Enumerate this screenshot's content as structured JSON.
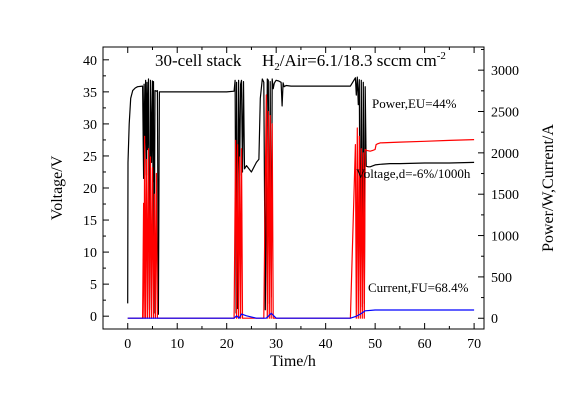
{
  "chart_data": {
    "type": "line",
    "title": "30-cell stack",
    "subtitle_parts": {
      "prefix": "H",
      "sub": "2",
      "middle": "/Air=6.1/18.3 sccm cm",
      "sup": "-2"
    },
    "xlabel": "Time/h",
    "ylabel_left": "Voltage/V",
    "ylabel_right": "Power/W,Current/A",
    "xlim": [
      -5,
      72
    ],
    "ylim_left": [
      -2,
      42
    ],
    "ylim_right": [
      -130,
      3280
    ],
    "x_ticks": [
      0,
      10,
      20,
      30,
      40,
      50,
      60,
      70
    ],
    "x_tick_labels": [
      "0",
      "10",
      "20",
      "30",
      "40",
      "50",
      "60",
      "70"
    ],
    "y_left_ticks": [
      0,
      5,
      10,
      15,
      20,
      25,
      30,
      35,
      40
    ],
    "y_left_tick_labels": [
      "0",
      "5",
      "10",
      "15",
      "20",
      "25",
      "30",
      "35",
      "40"
    ],
    "y_right_ticks": [
      0,
      500,
      1000,
      1500,
      2000,
      2500,
      3000
    ],
    "y_right_tick_labels": [
      "0",
      "500",
      "1000",
      "1500",
      "2000",
      "2500",
      "3000"
    ],
    "annotations": [
      "Power,EU=44%",
      "Voltage,d=-6%/1000h",
      "Current,FU=68.4%"
    ],
    "series": [
      {
        "axis": "left",
        "color": "#000000",
        "x": [
          0,
          0.05,
          0.3,
          0.6,
          1.0,
          1.5,
          2.0,
          3.0,
          3.2,
          3.3,
          3.4,
          3.6,
          3.8,
          3.9,
          4.0,
          4.2,
          4.4,
          4.6,
          4.8,
          5.0,
          5.1,
          5.2,
          5.3,
          5.5,
          5.8,
          6.0,
          6.2,
          6.4,
          8,
          12,
          16,
          20,
          21.5,
          21.7,
          21.9,
          22.0,
          22.2,
          22.4,
          22.6,
          22.8,
          23.0,
          23.2,
          23.4,
          23.6,
          24,
          25,
          26,
          26.5,
          26.8,
          27.2,
          27.5,
          27.8,
          28.2,
          28.4,
          28.6,
          28.8,
          29.0,
          29.2,
          29.4,
          29.6,
          29.8,
          30,
          30.5,
          31.0,
          31.2,
          31.4,
          31.6,
          32,
          33,
          35,
          37,
          39,
          41,
          43,
          45,
          46.0,
          46.2,
          46.4,
          46.6,
          46.8,
          47.0,
          47.2,
          47.4,
          47.6,
          47.8,
          48.0,
          48.2,
          48.6,
          49.0,
          50.0,
          51,
          53,
          55,
          60,
          65,
          70
        ],
        "y": [
          2,
          24,
          30,
          34,
          35.2,
          35.6,
          35.8,
          35.9,
          21.5,
          36.2,
          21,
          36.8,
          22,
          36.5,
          26,
          37,
          1,
          36.8,
          24,
          36.7,
          21,
          36.6,
          0.5,
          35.2,
          35.1,
          35.2,
          0.3,
          35.0,
          35.0,
          35.0,
          35.0,
          35.0,
          35.1,
          36.8,
          0.5,
          36.5,
          1.2,
          36.8,
          22,
          36.2,
          36.8,
          22.5,
          36.6,
          23,
          23.5,
          22.5,
          24,
          24.5,
          34,
          37,
          36.5,
          1,
          37,
          36.8,
          2,
          36.6,
          3,
          37,
          35.5,
          36.3,
          36.6,
          36.8,
          36.7,
          36.5,
          32.8,
          36.4,
          35.8,
          36.0,
          35.9,
          35.9,
          35.9,
          35.9,
          35.9,
          35.9,
          35.9,
          37.2,
          34.5,
          37.3,
          33,
          36.9,
          4,
          36.8,
          1.5,
          36.5,
          2,
          35.8,
          23.4,
          23.3,
          23.3,
          23.6,
          23.7,
          23.8,
          23.8,
          23.9,
          23.9,
          24.0
        ]
      },
      {
        "axis": "right",
        "color": "#ff0000",
        "x": [
          0,
          3.0,
          3.2,
          3.3,
          3.4,
          3.6,
          3.8,
          4.0,
          4.2,
          4.4,
          4.6,
          4.8,
          5.0,
          5.2,
          5.4,
          5.6,
          5.8,
          6.0,
          6.2,
          6.4,
          10,
          15,
          20,
          21.5,
          21.8,
          22.0,
          22.2,
          22.4,
          22.6,
          22.8,
          23.0,
          23.2,
          23.4,
          24,
          25,
          26,
          27,
          27.5,
          28.0,
          28.2,
          28.4,
          28.6,
          28.8,
          29.0,
          29.2,
          29.4,
          29.6,
          30,
          35,
          40,
          45,
          46.0,
          46.2,
          46.4,
          46.6,
          46.8,
          47.0,
          47.2,
          47.4,
          47.6,
          47.8,
          48.0,
          48.3,
          49.0,
          49.5,
          50.0,
          50.2,
          50.5,
          51,
          55,
          60,
          65,
          70
        ],
        "y": [
          0,
          0,
          1390,
          0,
          2200,
          0,
          1920,
          0,
          2050,
          0,
          1950,
          0,
          1820,
          0,
          1500,
          0,
          1750,
          0,
          0,
          0,
          0,
          0,
          0,
          0,
          2150,
          0,
          2100,
          0,
          1950,
          0,
          2050,
          0,
          0,
          0,
          0,
          0,
          0,
          0,
          2700,
          0,
          2500,
          0,
          2450,
          0,
          2350,
          0,
          0,
          0,
          0,
          0,
          0,
          2100,
          0,
          2300,
          0,
          2200,
          0,
          2050,
          0,
          2000,
          0,
          2040,
          2030,
          2020,
          2030,
          2040,
          2100,
          2110,
          2120,
          2130,
          2140,
          2150,
          2160
        ]
      },
      {
        "axis": "right",
        "color": "#0000ff",
        "x": [
          0,
          5,
          10,
          15,
          20,
          21.5,
          22,
          22.5,
          23,
          24,
          26,
          27,
          28,
          29,
          30,
          35,
          40,
          45,
          46,
          47,
          48,
          50,
          55,
          60,
          65,
          70
        ],
        "y": [
          0,
          0,
          0,
          0,
          0,
          0,
          30,
          0,
          50,
          30,
          0,
          0,
          0,
          60,
          0,
          0,
          0,
          0,
          20,
          50,
          90,
          100,
          100,
          100,
          100,
          100
        ]
      }
    ]
  }
}
